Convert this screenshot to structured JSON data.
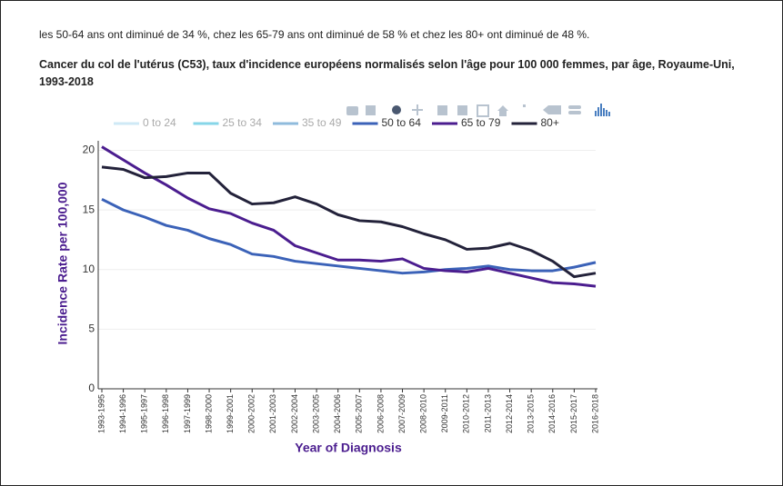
{
  "intro": "les 50-64 ans ont diminué de 34 %, chez les 65-79 ans ont diminué de 58 % et chez les 80+ ont diminué de 48 %.",
  "chart_data": {
    "type": "line",
    "title": "Cancer du col de l'utérus (C53), taux d'incidence européens normalisés selon l'âge pour 100 000 femmes, par âge, Royaume-Uni, 1993-2018",
    "x_label": "Year of Diagnosis",
    "y_label": "Incidence Rate per 100,000",
    "categories": [
      "1993-1995",
      "1994-1996",
      "1995-1997",
      "1996-1998",
      "1997-1999",
      "1998-2000",
      "1999-2001",
      "2000-2002",
      "2001-2003",
      "2002-2004",
      "2003-2005",
      "2004-2006",
      "2005-2007",
      "2006-2008",
      "2007-2009",
      "2008-2010",
      "2009-2011",
      "2010-2012",
      "2011-2013",
      "2012-2014",
      "2013-2015",
      "2014-2016",
      "2015-2017",
      "2016-2018"
    ],
    "legend_hidden": [
      {
        "name": "0 to 24",
        "color": "#cfe9f6"
      },
      {
        "name": "25 to 34",
        "color": "#86d6e8"
      },
      {
        "name": "35 to 49",
        "color": "#8fbbdc"
      }
    ],
    "series": [
      {
        "name": "50 to 64",
        "color": "#3b62b8",
        "values": [
          15.9,
          15.0,
          14.4,
          13.7,
          13.3,
          12.6,
          12.1,
          11.3,
          11.1,
          10.7,
          10.5,
          10.3,
          10.1,
          9.9,
          9.7,
          9.8,
          10.0,
          10.1,
          10.3,
          10.0,
          9.9,
          9.9,
          10.2,
          10.6
        ]
      },
      {
        "name": "65 to 79",
        "color": "#4b1d8f",
        "values": [
          20.3,
          19.2,
          18.1,
          17.1,
          16.0,
          15.1,
          14.7,
          13.9,
          13.3,
          12.0,
          11.4,
          10.8,
          10.8,
          10.7,
          10.9,
          10.1,
          9.9,
          9.8,
          10.1,
          9.7,
          9.3,
          8.9,
          8.8,
          8.6
        ]
      },
      {
        "name": "80+",
        "color": "#23223a",
        "values": [
          18.6,
          18.4,
          17.7,
          17.8,
          18.1,
          18.1,
          16.4,
          15.5,
          15.6,
          16.1,
          15.5,
          14.6,
          14.1,
          14.0,
          13.6,
          13.0,
          12.5,
          11.7,
          11.8,
          12.2,
          11.6,
          10.7,
          9.4,
          9.7
        ]
      }
    ],
    "ylim": [
      0,
      20.8
    ],
    "yticks": [
      0,
      5,
      10,
      15,
      20
    ],
    "grid": true
  }
}
